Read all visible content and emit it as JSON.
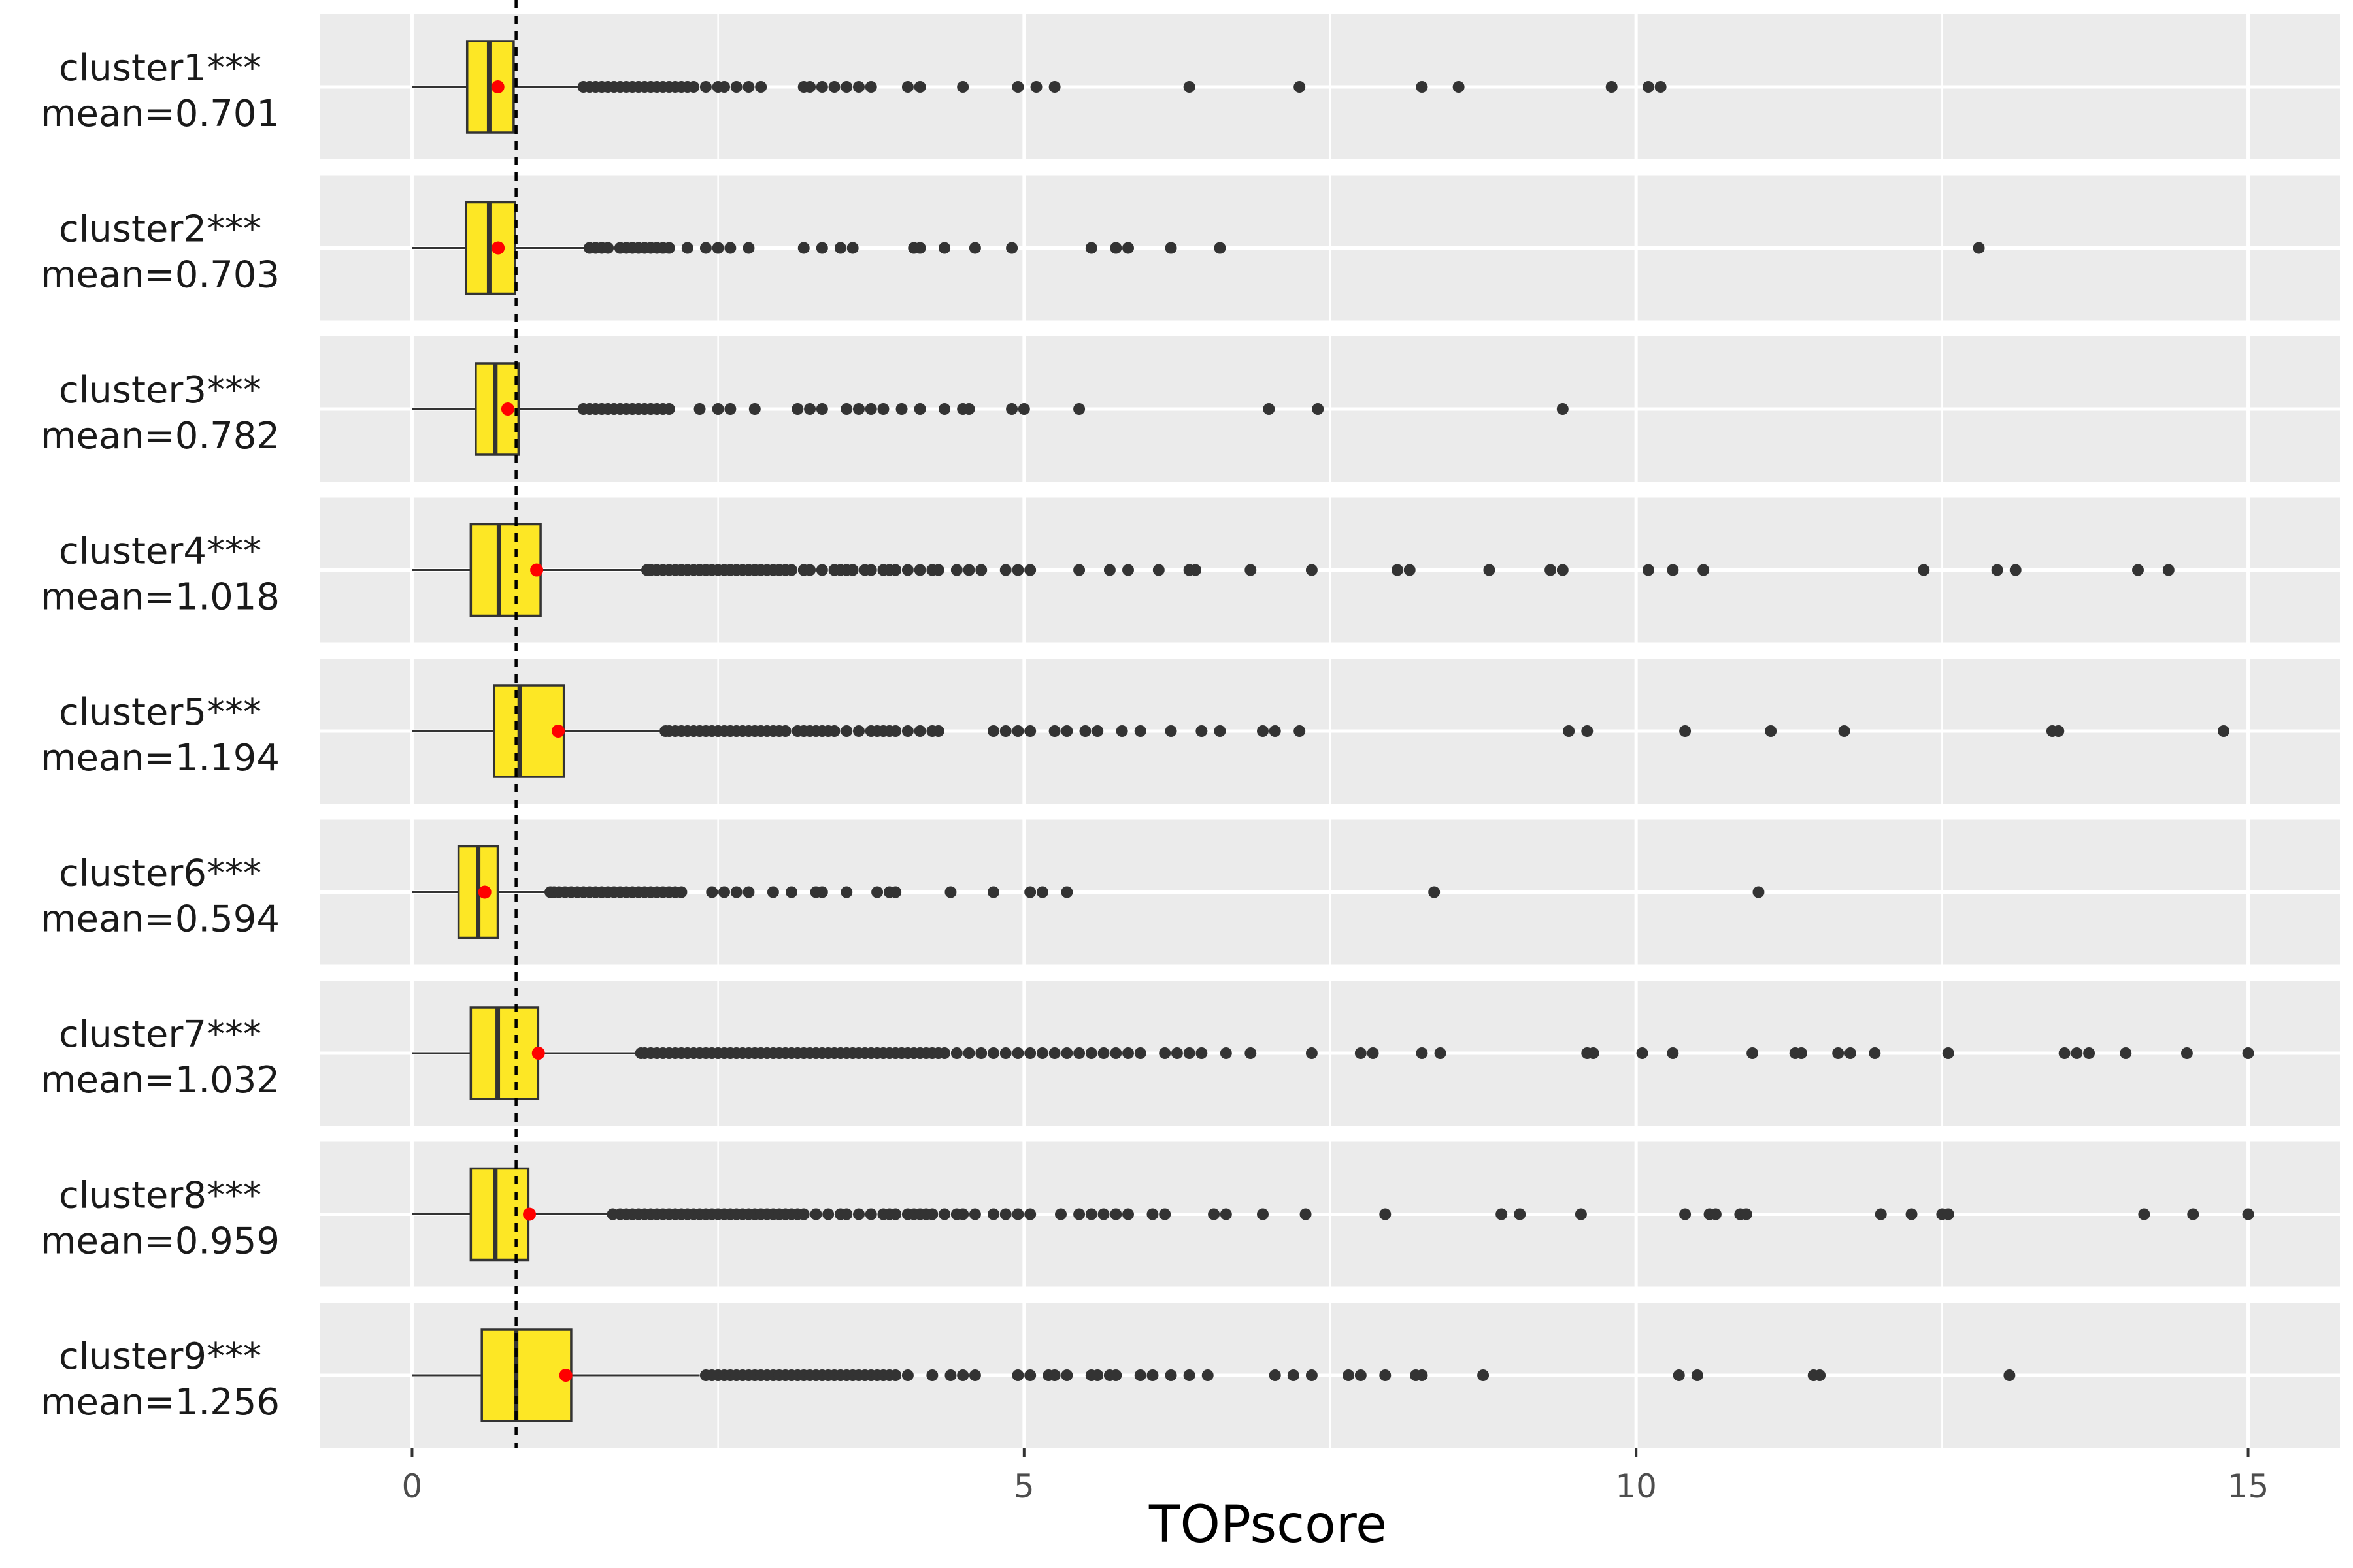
{
  "chart_data": {
    "type": "boxplot",
    "title": "",
    "xlabel": "TOPscore",
    "ylabel": "",
    "xlim": [
      -0.75,
      15.75
    ],
    "x_ticks": [
      0,
      5,
      10,
      15
    ],
    "x_tick_labels": [
      "0",
      "5",
      "10",
      "15"
    ],
    "reference_line_x": 0.85,
    "orientation": "horizontal",
    "colors": {
      "panel": "#ebebeb",
      "grid": "#ffffff",
      "box_fill": "#fde725",
      "box_stroke": "#333333",
      "mean_point": "#ff0000",
      "outlier": "#333333"
    },
    "clusters": [
      {
        "label": "cluster1***",
        "mean_label": "mean=0.701",
        "mean": 0.701,
        "whisker_low": 0.0,
        "q1": 0.45,
        "median": 0.63,
        "q3": 0.83,
        "whisker_high": 1.38,
        "outliers": [
          1.4,
          1.45,
          1.5,
          1.55,
          1.6,
          1.65,
          1.7,
          1.75,
          1.8,
          1.85,
          1.9,
          1.95,
          2.0,
          2.05,
          2.1,
          2.15,
          2.2,
          2.25,
          2.3,
          2.4,
          2.5,
          2.55,
          2.65,
          2.75,
          2.85,
          3.2,
          3.25,
          3.35,
          3.45,
          3.55,
          3.65,
          3.75,
          4.05,
          4.15,
          4.5,
          4.95,
          5.1,
          5.25,
          6.35,
          7.25,
          8.25,
          8.55,
          9.8,
          10.1,
          10.2
        ]
      },
      {
        "label": "cluster2***",
        "mean_label": "mean=0.703",
        "mean": 0.703,
        "whisker_low": 0.0,
        "q1": 0.44,
        "median": 0.63,
        "q3": 0.84,
        "whisker_high": 1.42,
        "outliers": [
          1.45,
          1.5,
          1.55,
          1.6,
          1.7,
          1.75,
          1.8,
          1.85,
          1.9,
          1.95,
          2.0,
          2.05,
          2.1,
          2.25,
          2.4,
          2.5,
          2.6,
          2.75,
          3.2,
          3.35,
          3.5,
          3.6,
          4.1,
          4.15,
          4.35,
          4.6,
          4.9,
          5.55,
          5.75,
          5.85,
          6.2,
          6.6,
          12.8
        ]
      },
      {
        "label": "cluster3***",
        "mean_label": "mean=0.782",
        "mean": 0.782,
        "whisker_low": 0.0,
        "q1": 0.52,
        "median": 0.68,
        "q3": 0.87,
        "whisker_high": 1.38,
        "outliers": [
          1.4,
          1.45,
          1.5,
          1.55,
          1.6,
          1.65,
          1.7,
          1.75,
          1.8,
          1.85,
          1.9,
          1.95,
          2.0,
          2.05,
          2.1,
          2.35,
          2.5,
          2.6,
          2.8,
          3.15,
          3.25,
          3.35,
          3.55,
          3.65,
          3.75,
          3.85,
          4.0,
          4.15,
          4.35,
          4.5,
          4.55,
          4.9,
          5.0,
          5.45,
          7.0,
          7.4,
          9.4
        ]
      },
      {
        "label": "cluster4***",
        "mean_label": "mean=1.018",
        "mean": 1.018,
        "whisker_low": 0.0,
        "q1": 0.48,
        "median": 0.71,
        "q3": 1.05,
        "whisker_high": 1.9,
        "outliers": [
          1.92,
          1.95,
          2.0,
          2.05,
          2.1,
          2.15,
          2.2,
          2.25,
          2.3,
          2.35,
          2.4,
          2.45,
          2.5,
          2.55,
          2.6,
          2.65,
          2.7,
          2.75,
          2.8,
          2.85,
          2.9,
          2.95,
          3.0,
          3.05,
          3.1,
          3.2,
          3.25,
          3.35,
          3.45,
          3.5,
          3.55,
          3.6,
          3.7,
          3.75,
          3.85,
          3.9,
          3.95,
          4.05,
          4.15,
          4.25,
          4.3,
          4.45,
          4.55,
          4.65,
          4.85,
          4.95,
          5.05,
          5.45,
          5.7,
          5.85,
          6.1,
          6.35,
          6.4,
          6.85,
          7.35,
          8.05,
          8.15,
          8.8,
          9.3,
          9.4,
          10.1,
          10.3,
          10.55,
          12.35,
          12.95,
          13.1,
          14.1,
          14.35
        ]
      },
      {
        "label": "cluster5***",
        "mean_label": "mean=1.194",
        "mean": 1.194,
        "whisker_low": 0.0,
        "q1": 0.67,
        "median": 0.88,
        "q3": 1.24,
        "whisker_high": 2.05,
        "outliers": [
          2.07,
          2.1,
          2.15,
          2.2,
          2.25,
          2.3,
          2.35,
          2.4,
          2.45,
          2.5,
          2.55,
          2.6,
          2.65,
          2.7,
          2.75,
          2.8,
          2.85,
          2.9,
          2.95,
          3.0,
          3.05,
          3.15,
          3.2,
          3.25,
          3.3,
          3.35,
          3.4,
          3.45,
          3.55,
          3.65,
          3.75,
          3.8,
          3.85,
          3.9,
          3.95,
          4.05,
          4.15,
          4.25,
          4.3,
          4.75,
          4.85,
          4.95,
          5.05,
          5.25,
          5.35,
          5.5,
          5.6,
          5.8,
          5.95,
          6.2,
          6.45,
          6.6,
          6.95,
          7.05,
          7.25,
          9.45,
          9.6,
          10.4,
          11.1,
          11.7,
          13.4,
          13.45,
          14.8
        ]
      },
      {
        "label": "cluster6***",
        "mean_label": "mean=0.594",
        "mean": 0.594,
        "whisker_low": 0.0,
        "q1": 0.38,
        "median": 0.54,
        "q3": 0.7,
        "whisker_high": 1.12,
        "outliers": [
          1.13,
          1.16,
          1.2,
          1.25,
          1.3,
          1.35,
          1.4,
          1.45,
          1.5,
          1.55,
          1.6,
          1.65,
          1.7,
          1.75,
          1.8,
          1.85,
          1.9,
          1.95,
          2.0,
          2.05,
          2.1,
          2.15,
          2.2,
          2.45,
          2.55,
          2.65,
          2.75,
          2.95,
          3.1,
          3.3,
          3.35,
          3.55,
          3.8,
          3.9,
          3.95,
          4.4,
          4.75,
          5.05,
          5.15,
          5.35,
          8.35,
          11.0
        ]
      },
      {
        "label": "cluster7***",
        "mean_label": "mean=1.032",
        "mean": 1.032,
        "whisker_low": 0.0,
        "q1": 0.48,
        "median": 0.7,
        "q3": 1.03,
        "whisker_high": 1.85,
        "outliers": [
          1.87,
          1.9,
          1.95,
          2.0,
          2.05,
          2.1,
          2.15,
          2.2,
          2.25,
          2.3,
          2.35,
          2.4,
          2.45,
          2.5,
          2.55,
          2.6,
          2.65,
          2.7,
          2.75,
          2.8,
          2.85,
          2.9,
          2.95,
          3.0,
          3.05,
          3.1,
          3.15,
          3.2,
          3.25,
          3.3,
          3.35,
          3.4,
          3.45,
          3.5,
          3.55,
          3.6,
          3.65,
          3.7,
          3.75,
          3.8,
          3.85,
          3.9,
          3.95,
          4.0,
          4.05,
          4.1,
          4.15,
          4.2,
          4.25,
          4.3,
          4.35,
          4.45,
          4.55,
          4.65,
          4.75,
          4.85,
          4.95,
          5.05,
          5.15,
          5.25,
          5.35,
          5.45,
          5.55,
          5.65,
          5.75,
          5.85,
          5.95,
          6.15,
          6.25,
          6.35,
          6.45,
          6.65,
          6.85,
          7.35,
          7.75,
          7.85,
          8.25,
          8.4,
          9.6,
          9.65,
          10.05,
          10.3,
          10.95,
          11.3,
          11.35,
          11.65,
          11.75,
          11.95,
          12.55,
          13.5,
          13.6,
          13.7,
          14.0,
          14.5,
          15.0
        ]
      },
      {
        "label": "cluster8***",
        "mean_label": "mean=0.959",
        "mean": 0.959,
        "whisker_low": 0.0,
        "q1": 0.48,
        "median": 0.68,
        "q3": 0.95,
        "whisker_high": 1.62,
        "outliers": [
          1.64,
          1.7,
          1.75,
          1.8,
          1.85,
          1.9,
          1.95,
          2.0,
          2.05,
          2.1,
          2.15,
          2.2,
          2.25,
          2.3,
          2.35,
          2.4,
          2.45,
          2.5,
          2.55,
          2.6,
          2.65,
          2.7,
          2.75,
          2.8,
          2.85,
          2.9,
          2.95,
          3.0,
          3.05,
          3.1,
          3.15,
          3.2,
          3.3,
          3.4,
          3.5,
          3.55,
          3.65,
          3.75,
          3.85,
          3.9,
          3.95,
          4.05,
          4.1,
          4.15,
          4.2,
          4.25,
          4.35,
          4.45,
          4.5,
          4.6,
          4.75,
          4.85,
          4.95,
          5.05,
          5.3,
          5.45,
          5.55,
          5.65,
          5.75,
          5.85,
          6.05,
          6.15,
          6.55,
          6.65,
          6.95,
          7.3,
          7.95,
          8.9,
          9.05,
          9.55,
          10.4,
          10.6,
          10.65,
          10.85,
          10.9,
          12.0,
          12.25,
          12.5,
          12.55,
          14.15,
          14.55,
          15.0
        ]
      },
      {
        "label": "cluster9***",
        "mean_label": "mean=1.256",
        "mean": 1.256,
        "whisker_low": 0.0,
        "q1": 0.57,
        "median": 0.85,
        "q3": 1.3,
        "whisker_high": 2.35,
        "outliers": [
          2.4,
          2.45,
          2.5,
          2.55,
          2.6,
          2.65,
          2.7,
          2.75,
          2.8,
          2.85,
          2.9,
          2.95,
          3.0,
          3.05,
          3.1,
          3.15,
          3.2,
          3.25,
          3.3,
          3.35,
          3.4,
          3.45,
          3.5,
          3.55,
          3.6,
          3.65,
          3.7,
          3.75,
          3.8,
          3.85,
          3.9,
          3.95,
          4.05,
          4.25,
          4.4,
          4.5,
          4.6,
          4.95,
          5.05,
          5.2,
          5.25,
          5.35,
          5.55,
          5.6,
          5.7,
          5.75,
          5.95,
          6.05,
          6.2,
          6.35,
          6.5,
          7.05,
          7.2,
          7.35,
          7.65,
          7.75,
          7.95,
          8.2,
          8.25,
          8.75,
          10.35,
          10.5,
          11.45,
          11.5,
          13.05
        ]
      }
    ]
  }
}
